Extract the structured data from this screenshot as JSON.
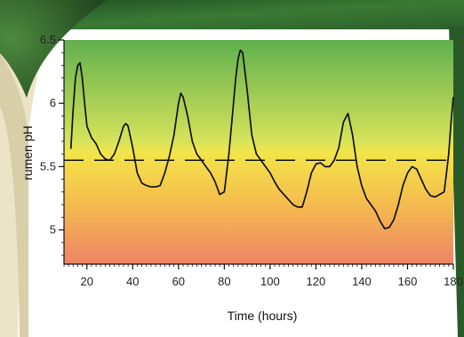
{
  "chart_data": {
    "type": "line",
    "title": "",
    "xlabel": "Time (hours)",
    "ylabel": "rumen pH",
    "xlim": [
      10,
      180
    ],
    "ylim": [
      4.73,
      6.5
    ],
    "x_ticks": [
      20,
      40,
      60,
      80,
      100,
      120,
      140,
      160,
      180
    ],
    "x_tick_labels": [
      "20",
      "40",
      "60",
      "80",
      "100",
      "120",
      "140",
      "160",
      "180"
    ],
    "y_ticks": [
      5,
      5.5,
      6,
      6.5
    ],
    "y_tick_labels": [
      "5",
      "5.5",
      "6",
      "6.5"
    ],
    "threshold": {
      "value": 5.55,
      "style": "dashed"
    },
    "grid": false,
    "legend": "none",
    "colors": {
      "line": "#111111",
      "gradient_top": "#5fb04e",
      "gradient_mid": "#f2e54a",
      "gradient_bottom": "#ee8466",
      "background_green": "#2f6a2f",
      "background_beige": "#ece4c6"
    },
    "series": [
      {
        "x": [
          13,
          14,
          15,
          16,
          17,
          18,
          19,
          20,
          22,
          24,
          26,
          28,
          30,
          32,
          34,
          36,
          37,
          38,
          40,
          42,
          44,
          46,
          48,
          50,
          52,
          54,
          56,
          58,
          60,
          61,
          62,
          64,
          66,
          68,
          70,
          72,
          74,
          76,
          78,
          80,
          82,
          84,
          85,
          86,
          87,
          88,
          90,
          92,
          94,
          96,
          98,
          100,
          102,
          104,
          106,
          108,
          110,
          112,
          114,
          116,
          118,
          120,
          122,
          124,
          126,
          128,
          130,
          132,
          134,
          136,
          138,
          140,
          142,
          144,
          146,
          148,
          150,
          152,
          154,
          156,
          158,
          160,
          162,
          164,
          166,
          168,
          170,
          172,
          174,
          176,
          177,
          178,
          179,
          180
        ],
        "values": [
          5.64,
          5.95,
          6.2,
          6.3,
          6.32,
          6.2,
          6.0,
          5.82,
          5.73,
          5.68,
          5.6,
          5.56,
          5.55,
          5.6,
          5.7,
          5.82,
          5.84,
          5.82,
          5.65,
          5.45,
          5.37,
          5.35,
          5.34,
          5.34,
          5.35,
          5.45,
          5.58,
          5.75,
          6.0,
          6.08,
          6.05,
          5.9,
          5.7,
          5.6,
          5.55,
          5.5,
          5.45,
          5.38,
          5.28,
          5.3,
          5.6,
          6.0,
          6.2,
          6.35,
          6.42,
          6.4,
          6.1,
          5.75,
          5.6,
          5.55,
          5.5,
          5.45,
          5.38,
          5.32,
          5.28,
          5.24,
          5.2,
          5.18,
          5.18,
          5.3,
          5.45,
          5.52,
          5.53,
          5.5,
          5.5,
          5.55,
          5.65,
          5.85,
          5.92,
          5.75,
          5.5,
          5.35,
          5.25,
          5.2,
          5.15,
          5.07,
          5.01,
          5.02,
          5.08,
          5.2,
          5.35,
          5.45,
          5.5,
          5.48,
          5.4,
          5.32,
          5.27,
          5.26,
          5.28,
          5.3,
          5.45,
          5.6,
          5.85,
          6.05
        ]
      }
    ]
  }
}
